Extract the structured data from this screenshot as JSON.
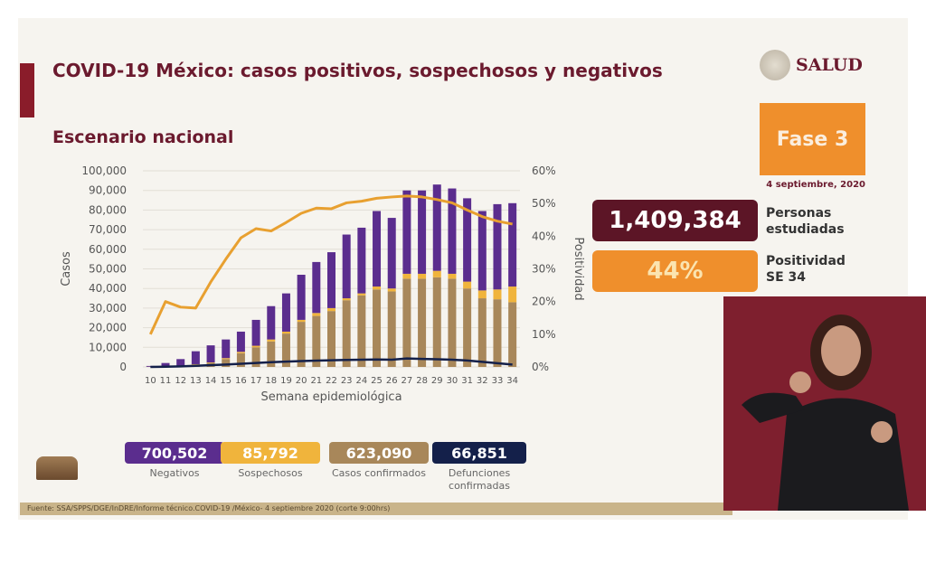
{
  "header": {
    "title": "COVID-19 México: casos positivos, sospechosos y negativos",
    "subtitle": "Escenario nacional",
    "logo": "SALUD"
  },
  "phase": {
    "label": "Fase 3",
    "date": "4 septiembre, 2020"
  },
  "stats": [
    {
      "value": "1,409,384",
      "label_line1": "Personas",
      "label_line2": "estudiadas",
      "color": "#5c1526"
    },
    {
      "value": "44%",
      "label_line1": "Positividad",
      "label_line2": "SE 34",
      "color": "#ef8f2c"
    }
  ],
  "legend": [
    {
      "value": "700,502",
      "label": "Negativos",
      "color": "#5b2d8e"
    },
    {
      "value": "85,792",
      "label": "Sospechosos",
      "color": "#f0b43c"
    },
    {
      "value": "623,090",
      "label": "Casos confirmados",
      "color": "#a8875a"
    },
    {
      "value": "66,851",
      "label": "Defunciones confirmadas",
      "color": "#14204a"
    }
  ],
  "source": "Fuente: SSA/SPPS/DGE/InDRE/Informe técnico.COVID-19 /México- 4 septiembre 2020 (corte 9:00hrs)",
  "chart_data": {
    "type": "bar",
    "stacked": true,
    "xlabel": "Semana epidemiológica",
    "ylabel": "Casos",
    "y2label": "Positividad",
    "ylim": [
      0,
      100000
    ],
    "y2lim": [
      0,
      60
    ],
    "yticks": [
      "0",
      "10,000",
      "20,000",
      "30,000",
      "40,000",
      "50,000",
      "60,000",
      "70,000",
      "80,000",
      "90,000",
      "100,000"
    ],
    "y2ticks": [
      "0%",
      "10%",
      "20%",
      "30%",
      "40%",
      "50%",
      "60%"
    ],
    "grid": true,
    "categories": [
      "10",
      "11",
      "12",
      "13",
      "14",
      "15",
      "16",
      "17",
      "18",
      "19",
      "20",
      "21",
      "22",
      "23",
      "24",
      "25",
      "26",
      "27",
      "28",
      "29",
      "30",
      "31",
      "32",
      "33",
      "34"
    ],
    "series": [
      {
        "name": "Casos confirmados",
        "type": "bar",
        "color": "#a8875a",
        "values": [
          100,
          300,
          600,
          1200,
          2000,
          4000,
          7000,
          10000,
          13000,
          17000,
          23000,
          26000,
          28500,
          34000,
          36500,
          39500,
          38500,
          45000,
          45000,
          45700,
          45000,
          40000,
          35000,
          34500,
          33000
        ]
      },
      {
        "name": "Sospechosos",
        "type": "bar",
        "color": "#f0b43c",
        "values": [
          0,
          50,
          100,
          200,
          300,
          500,
          700,
          800,
          1000,
          1000,
          1000,
          1500,
          1500,
          1000,
          1000,
          1500,
          1500,
          2500,
          2500,
          3300,
          2500,
          3500,
          4000,
          5000,
          8000
        ]
      },
      {
        "name": "Negativos",
        "type": "bar",
        "color": "#5b2d8e",
        "values": [
          400,
          1650,
          3300,
          6600,
          8700,
          9500,
          10300,
          13200,
          17000,
          19500,
          23000,
          26000,
          28500,
          32500,
          33500,
          38500,
          36000,
          42500,
          42500,
          44000,
          43500,
          42500,
          40500,
          43500,
          42500
        ]
      },
      {
        "name": "Defunciones confirmadas",
        "type": "line",
        "axis": "left",
        "color": "#14204a",
        "values": [
          20,
          100,
          300,
          600,
          900,
          1200,
          1600,
          2000,
          2400,
          2700,
          3000,
          3200,
          3400,
          3600,
          3700,
          3800,
          3700,
          4300,
          4100,
          3900,
          3700,
          3300,
          2600,
          1900,
          1200
        ]
      },
      {
        "name": "Positividad",
        "type": "line",
        "axis": "right",
        "color": "#e8a030",
        "values": [
          10,
          20,
          18.3,
          18,
          26,
          33,
          39.5,
          42.3,
          41.6,
          44.2,
          47,
          48.6,
          48.4,
          50.2,
          50.7,
          51.6,
          52,
          52.3,
          52,
          51.2,
          50.2,
          48,
          46,
          44.6,
          43.7
        ]
      }
    ]
  }
}
